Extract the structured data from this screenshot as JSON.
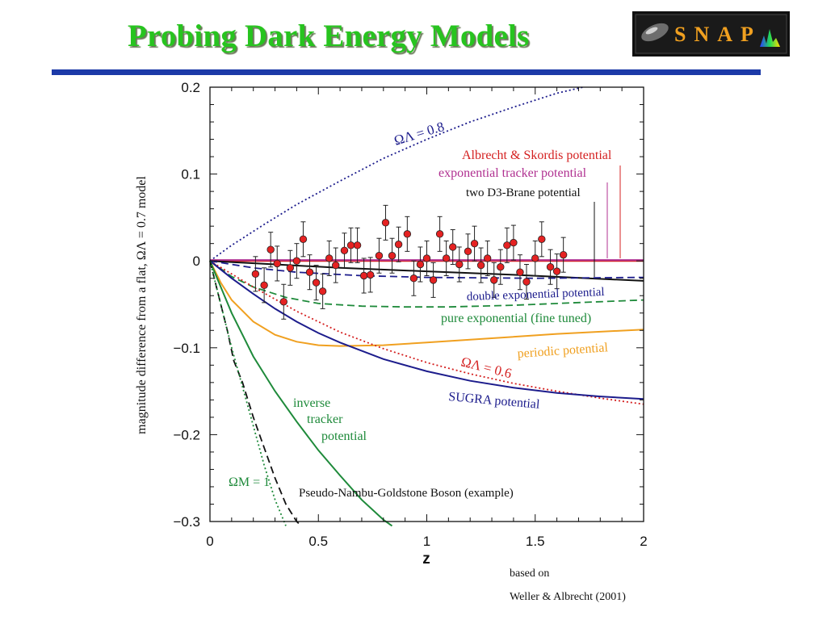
{
  "slide": {
    "title": "Probing Dark Energy Models",
    "logo_text": "SNAP",
    "reference_line1": "based on",
    "reference_line2": "Weller & Albrecht (2001)"
  },
  "chart_data": {
    "type": "line",
    "xlabel": "z",
    "ylabel": "magnitude difference from a flat, ΩΛ = 0.7 model",
    "xlim": [
      0,
      2
    ],
    "ylim": [
      -0.3,
      0.2
    ],
    "x_ticks": [
      "0",
      "0.5",
      "1",
      "1.5",
      "2"
    ],
    "y_ticks": [
      "0.2",
      "0.1",
      "0",
      "−0.1",
      "−0.2",
      "−0.3"
    ],
    "x_tick_values": [
      0,
      0.5,
      1,
      1.5,
      2
    ],
    "y_tick_values": [
      0.2,
      0.1,
      0,
      -0.1,
      -0.2,
      -0.3
    ],
    "series": [
      {
        "label": "ΩΛ = 0.8",
        "color": "#1c1c8c",
        "style": "dotted",
        "x": [
          0,
          0.1,
          0.25,
          0.4,
          0.6,
          0.8,
          1.0,
          1.2,
          1.4,
          1.6,
          1.72
        ],
        "y": [
          0,
          0.018,
          0.042,
          0.065,
          0.092,
          0.118,
          0.14,
          0.16,
          0.177,
          0.193,
          0.2
        ]
      },
      {
        "label": "Albrecht & Skordis potential",
        "color": "#d42020",
        "style": "solid",
        "x": [
          0,
          2
        ],
        "y": [
          0,
          0
        ]
      },
      {
        "label": "exponential tracker potential",
        "color": "#b03090",
        "style": "solid",
        "x": [
          0,
          2
        ],
        "y": [
          0.001,
          0.001
        ]
      },
      {
        "label": "two D3-Brane potential",
        "color": "#111111",
        "style": "solid",
        "x": [
          0,
          0.3,
          0.6,
          1.0,
          1.4,
          2.0
        ],
        "y": [
          0,
          -0.004,
          -0.008,
          -0.012,
          -0.016,
          -0.023
        ]
      },
      {
        "label": "double exponential potential",
        "color": "#1c1c8c",
        "style": "dashed",
        "x": [
          0,
          0.2,
          0.4,
          0.7,
          1.0,
          1.5,
          2.0
        ],
        "y": [
          0,
          -0.008,
          -0.013,
          -0.017,
          -0.019,
          -0.02,
          -0.019
        ]
      },
      {
        "label": "pure exponential (fine tuned)",
        "color": "#1e8a3a",
        "style": "dashed",
        "x": [
          0,
          0.1,
          0.2,
          0.35,
          0.5,
          0.7,
          0.9,
          1.1,
          1.4,
          1.7,
          2.0
        ],
        "y": [
          0,
          -0.018,
          -0.03,
          -0.042,
          -0.049,
          -0.052,
          -0.053,
          -0.053,
          -0.051,
          -0.048,
          -0.045
        ]
      },
      {
        "label": "periodic potential",
        "color": "#f0a020",
        "style": "solid",
        "x": [
          0,
          0.05,
          0.1,
          0.2,
          0.3,
          0.4,
          0.5,
          0.6,
          0.8,
          1.0,
          1.3,
          1.6,
          2.0
        ],
        "y": [
          0,
          -0.025,
          -0.045,
          -0.07,
          -0.085,
          -0.093,
          -0.097,
          -0.098,
          -0.097,
          -0.094,
          -0.089,
          -0.084,
          -0.079
        ]
      },
      {
        "label": "ΩΛ = 0.6",
        "color": "#d42020",
        "style": "dotted",
        "x": [
          0,
          0.2,
          0.4,
          0.6,
          0.8,
          1.0,
          1.2,
          1.4,
          1.6,
          1.8,
          2.0
        ],
        "y": [
          0,
          -0.03,
          -0.058,
          -0.082,
          -0.101,
          -0.117,
          -0.13,
          -0.141,
          -0.15,
          -0.158,
          -0.165
        ]
      },
      {
        "label": "SUGRA potential",
        "color": "#1c1c8c",
        "style": "solid",
        "x": [
          0,
          0.1,
          0.2,
          0.3,
          0.4,
          0.5,
          0.6,
          0.8,
          1.0,
          1.2,
          1.4,
          1.6,
          1.8,
          2.0
        ],
        "y": [
          0,
          -0.02,
          -0.038,
          -0.055,
          -0.07,
          -0.083,
          -0.094,
          -0.113,
          -0.127,
          -0.138,
          -0.146,
          -0.152,
          -0.156,
          -0.159
        ]
      },
      {
        "label": "inverse tracker potential",
        "color": "#1e8a3a",
        "style": "solid",
        "x": [
          0,
          0.05,
          0.1,
          0.15,
          0.2,
          0.3,
          0.4,
          0.5,
          0.6,
          0.7,
          0.8,
          0.84
        ],
        "y": [
          0,
          -0.03,
          -0.06,
          -0.085,
          -0.11,
          -0.15,
          -0.185,
          -0.218,
          -0.247,
          -0.275,
          -0.298,
          -0.305
        ]
      },
      {
        "label": "Pseudo-Nambu-Goldstone Boson (example)",
        "color": "#111111",
        "style": "dashed",
        "x": [
          0,
          0.04,
          0.08,
          0.11,
          0.15,
          0.2,
          0.25,
          0.3,
          0.35,
          0.4,
          0.42
        ],
        "y": [
          0,
          -0.04,
          -0.08,
          -0.115,
          -0.14,
          -0.18,
          -0.215,
          -0.25,
          -0.28,
          -0.3,
          -0.305
        ]
      },
      {
        "label": "ΩM = 1",
        "color": "#1e8a3a",
        "style": "dotted",
        "x": [
          0,
          0.05,
          0.1,
          0.15,
          0.2,
          0.25,
          0.3,
          0.35
        ],
        "y": [
          0,
          -0.05,
          -0.1,
          -0.145,
          -0.19,
          -0.235,
          -0.275,
          -0.305
        ]
      }
    ],
    "data_points": [
      {
        "x": 0.21,
        "y": -0.015,
        "err": 0.02
      },
      {
        "x": 0.25,
        "y": -0.028,
        "err": 0.02
      },
      {
        "x": 0.28,
        "y": 0.013,
        "err": 0.02
      },
      {
        "x": 0.31,
        "y": -0.003,
        "err": 0.02
      },
      {
        "x": 0.34,
        "y": -0.047,
        "err": 0.02
      },
      {
        "x": 0.37,
        "y": -0.008,
        "err": 0.02
      },
      {
        "x": 0.4,
        "y": -0.0,
        "err": 0.02
      },
      {
        "x": 0.43,
        "y": 0.025,
        "err": 0.02
      },
      {
        "x": 0.46,
        "y": -0.013,
        "err": 0.02
      },
      {
        "x": 0.49,
        "y": -0.025,
        "err": 0.02
      },
      {
        "x": 0.52,
        "y": -0.035,
        "err": 0.02
      },
      {
        "x": 0.55,
        "y": 0.003,
        "err": 0.02
      },
      {
        "x": 0.58,
        "y": -0.005,
        "err": 0.02
      },
      {
        "x": 0.62,
        "y": 0.012,
        "err": 0.02
      },
      {
        "x": 0.65,
        "y": 0.018,
        "err": 0.02
      },
      {
        "x": 0.68,
        "y": 0.018,
        "err": 0.02
      },
      {
        "x": 0.71,
        "y": -0.017,
        "err": 0.02
      },
      {
        "x": 0.74,
        "y": -0.016,
        "err": 0.02
      },
      {
        "x": 0.78,
        "y": 0.006,
        "err": 0.02
      },
      {
        "x": 0.81,
        "y": 0.044,
        "err": 0.02
      },
      {
        "x": 0.84,
        "y": 0.006,
        "err": 0.02
      },
      {
        "x": 0.87,
        "y": 0.019,
        "err": 0.02
      },
      {
        "x": 0.91,
        "y": 0.031,
        "err": 0.02
      },
      {
        "x": 0.94,
        "y": -0.02,
        "err": 0.02
      },
      {
        "x": 0.97,
        "y": -0.004,
        "err": 0.02
      },
      {
        "x": 1.0,
        "y": 0.003,
        "err": 0.02
      },
      {
        "x": 1.03,
        "y": -0.022,
        "err": 0.02
      },
      {
        "x": 1.06,
        "y": 0.031,
        "err": 0.02
      },
      {
        "x": 1.09,
        "y": 0.003,
        "err": 0.02
      },
      {
        "x": 1.12,
        "y": 0.016,
        "err": 0.02
      },
      {
        "x": 1.15,
        "y": -0.004,
        "err": 0.02
      },
      {
        "x": 1.19,
        "y": 0.011,
        "err": 0.02
      },
      {
        "x": 1.22,
        "y": 0.02,
        "err": 0.02
      },
      {
        "x": 1.25,
        "y": -0.005,
        "err": 0.02
      },
      {
        "x": 1.28,
        "y": 0.003,
        "err": 0.02
      },
      {
        "x": 1.31,
        "y": -0.022,
        "err": 0.02
      },
      {
        "x": 1.34,
        "y": -0.007,
        "err": 0.02
      },
      {
        "x": 1.37,
        "y": 0.018,
        "err": 0.02
      },
      {
        "x": 1.4,
        "y": 0.021,
        "err": 0.02
      },
      {
        "x": 1.43,
        "y": -0.013,
        "err": 0.02
      },
      {
        "x": 1.46,
        "y": -0.024,
        "err": 0.02
      },
      {
        "x": 1.5,
        "y": 0.003,
        "err": 0.02
      },
      {
        "x": 1.53,
        "y": 0.025,
        "err": 0.02
      },
      {
        "x": 1.57,
        "y": -0.007,
        "err": 0.02
      },
      {
        "x": 1.6,
        "y": -0.012,
        "err": 0.02
      },
      {
        "x": 1.63,
        "y": 0.007,
        "err": 0.02
      }
    ]
  }
}
